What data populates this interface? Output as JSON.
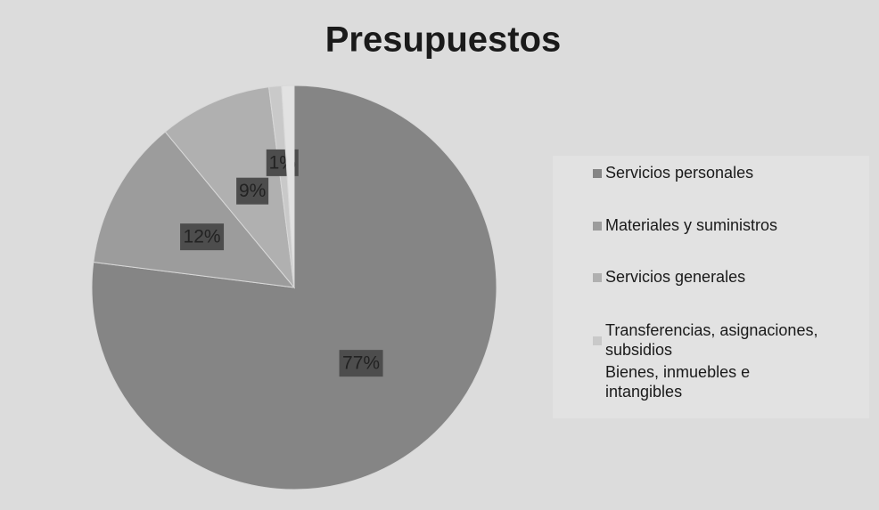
{
  "chart_data": {
    "type": "pie",
    "title": "Presupuestos",
    "categories": [
      "Servicios personales",
      "Materiales y suministros",
      "Servicios generales",
      "Transferencias, asignaciones, subsidios",
      "Bienes, inmuebles e intangibles"
    ],
    "values": [
      77,
      12,
      9,
      1,
      1
    ],
    "value_labels": [
      "77%",
      "12%",
      "9%",
      "1%",
      null
    ],
    "colors": [
      "#858585",
      "#9c9c9c",
      "#b0b0b0",
      "#c9c9c9",
      "#e2e2e2"
    ],
    "legend": "right"
  }
}
